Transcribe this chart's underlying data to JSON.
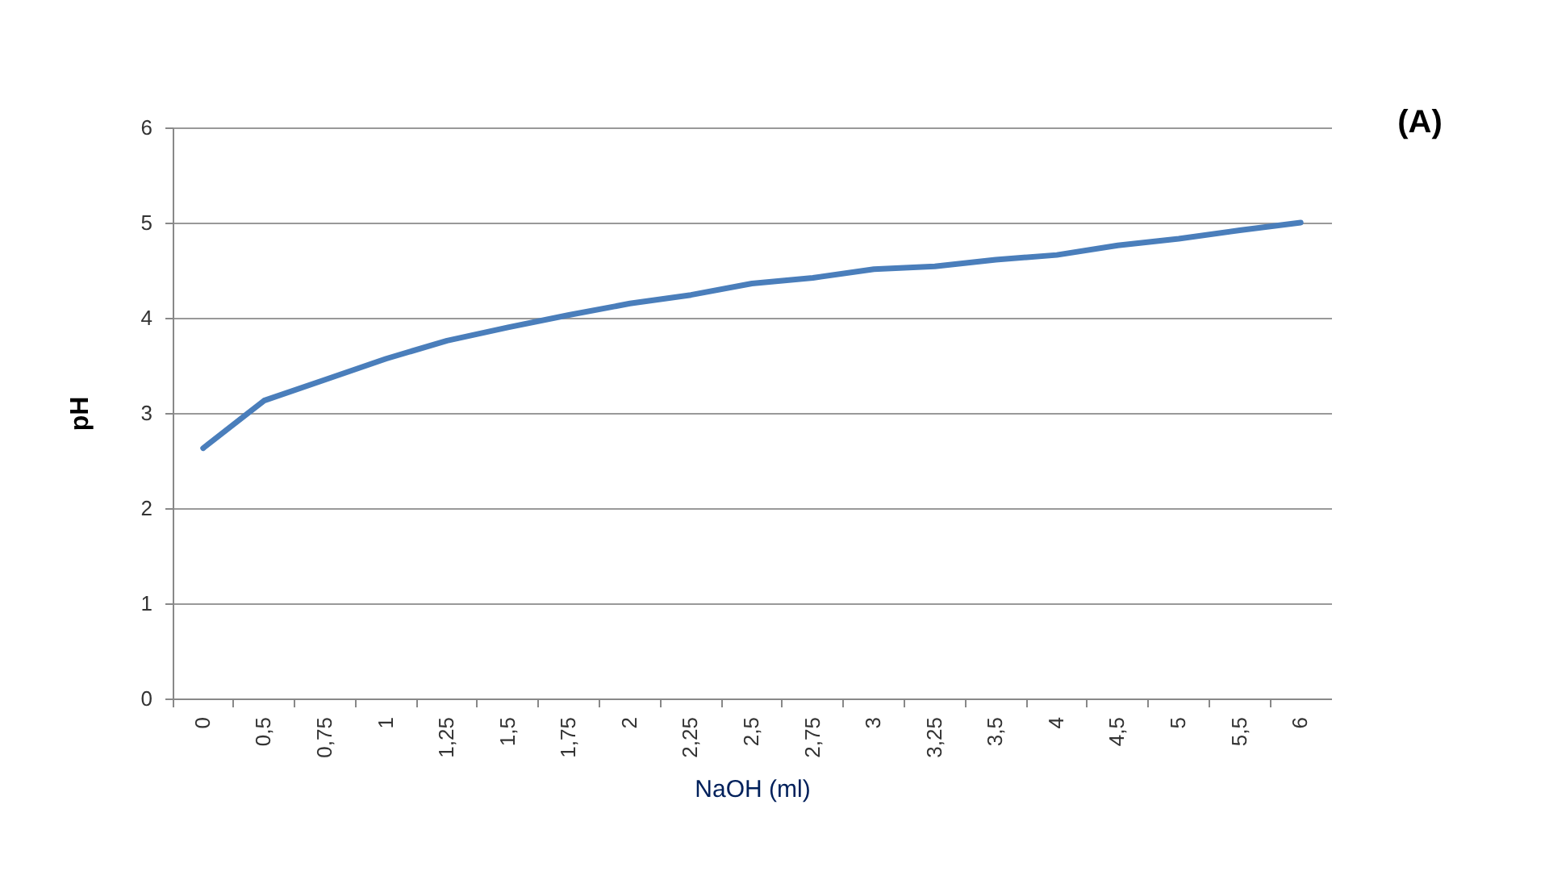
{
  "chart_data": {
    "type": "line",
    "xlabel": "NaOH (ml)",
    "ylabel": "pH",
    "annotations": [
      "(A)"
    ],
    "categories": [
      "0",
      "0,5",
      "0,75",
      "1",
      "1,25",
      "1,5",
      "1,75",
      "2",
      "2,25",
      "2,5",
      "2,75",
      "3",
      "3,25",
      "3,5",
      "4",
      "4,5",
      "5",
      "5,5",
      "6"
    ],
    "series": [
      {
        "color": "#4a7ebb",
        "values": [
          2.63,
          3.13,
          3.35,
          3.57,
          3.76,
          3.9,
          4.03,
          4.15,
          4.24,
          4.36,
          4.42,
          4.51,
          4.54,
          4.61,
          4.66,
          4.76,
          4.83,
          4.92,
          5.0
        ]
      }
    ],
    "ylim": [
      0,
      6
    ],
    "yticks": [
      0,
      1,
      2,
      3,
      4,
      5,
      6
    ],
    "grid": "y",
    "marker": "none",
    "line_style": "solid"
  }
}
